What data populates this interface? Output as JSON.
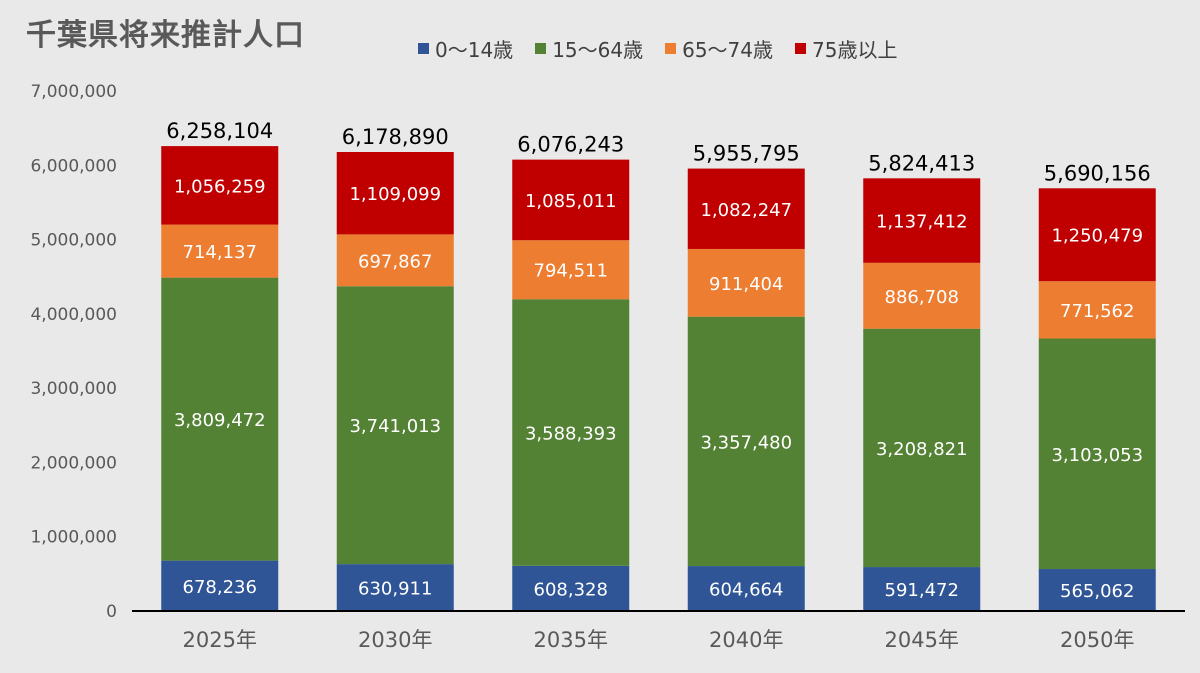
{
  "chart_data": {
    "type": "bar",
    "stacked": true,
    "title": "千葉県将来推計人口",
    "categories": [
      "2025年",
      "2030年",
      "2035年",
      "2040年",
      "2045年",
      "2050年"
    ],
    "series": [
      {
        "name": "0～14歳",
        "color": "#2f5597",
        "values": [
          678236,
          630911,
          608328,
          604664,
          591472,
          565062
        ],
        "labels": [
          "678,236",
          "630,911",
          "608,328",
          "604,664",
          "591,472",
          "565,062"
        ]
      },
      {
        "name": "15～64歳",
        "color": "#548235",
        "values": [
          3809472,
          3741013,
          3588393,
          3357480,
          3208821,
          3103053
        ],
        "labels": [
          "3,809,472",
          "3,741,013",
          "3,588,393",
          "3,357,480",
          "3,208,821",
          "3,103,053"
        ]
      },
      {
        "name": "65～74歳",
        "color": "#ed7d31",
        "values": [
          714137,
          697867,
          794511,
          911404,
          886708,
          771562
        ],
        "labels": [
          "714,137",
          "697,867",
          "794,511",
          "911,404",
          "886,708",
          "771,562"
        ]
      },
      {
        "name": "75歳以上",
        "color": "#c00000",
        "values": [
          1056259,
          1109099,
          1085011,
          1082247,
          1137412,
          1250479
        ],
        "labels": [
          "1,056,259",
          "1,109,099",
          "1,085,011",
          "1,082,247",
          "1,137,412",
          "1,250,479"
        ]
      }
    ],
    "totals": [
      6258104,
      6178890,
      6076243,
      5955795,
      5824413,
      5690156
    ],
    "total_labels": [
      "6,258,104",
      "6,178,890",
      "6,076,243",
      "5,955,795",
      "5,824,413",
      "5,690,156"
    ],
    "ylim": [
      0,
      7000000
    ],
    "yticks": [
      "0",
      "1,000,000",
      "2,000,000",
      "3,000,000",
      "4,000,000",
      "5,000,000",
      "6,000,000",
      "7,000,000"
    ],
    "grid": false,
    "legend_position": "top"
  }
}
